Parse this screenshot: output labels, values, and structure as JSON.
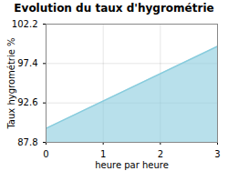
{
  "chart_data": {
    "type": "area",
    "title": "Evolution du taux d'hygrométrie",
    "xlabel": "heure par heure",
    "ylabel": "Taux hygrométrie %",
    "x": [
      0,
      3
    ],
    "values": [
      89.5,
      99.5
    ],
    "color": "#88ccdd",
    "xlim": [
      0,
      3
    ],
    "ylim": [
      87.8,
      102.2
    ],
    "xticks": [
      0,
      1,
      2,
      3
    ],
    "yticks": [
      87.8,
      92.6,
      97.4,
      102.2
    ],
    "grid": true
  }
}
